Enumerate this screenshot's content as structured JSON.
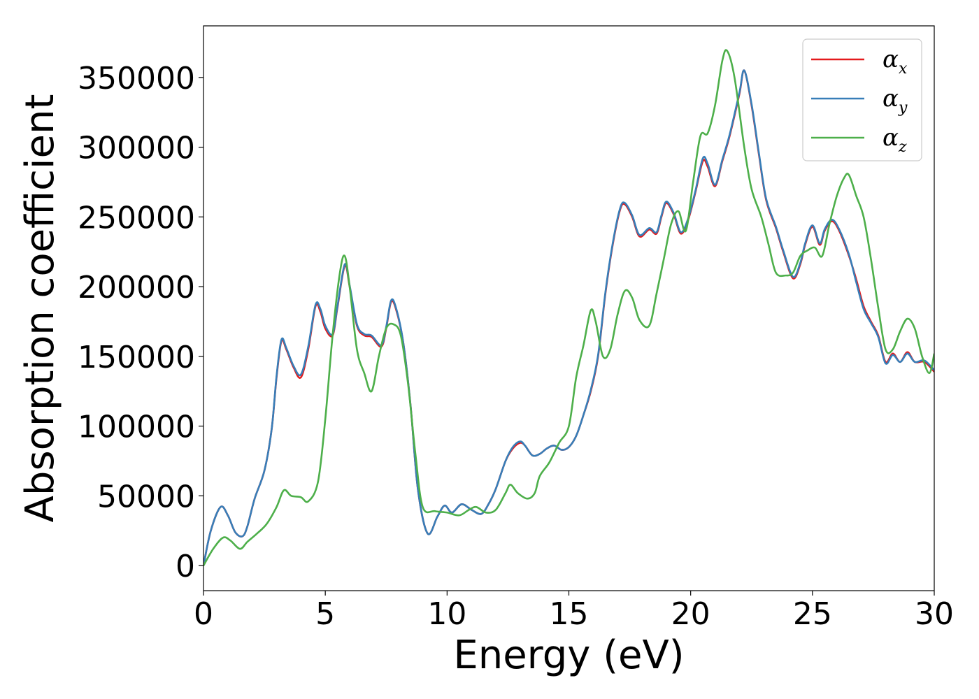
{
  "chart_data": {
    "type": "line",
    "xlabel": "Energy (eV)",
    "ylabel": "Absorption coefficient",
    "xlim": [
      0,
      30
    ],
    "ylim": [
      -18000,
      387000
    ],
    "x_ticks": [
      0,
      5,
      10,
      15,
      20,
      25,
      30
    ],
    "x_tick_labels": [
      "0",
      "5",
      "10",
      "15",
      "20",
      "25",
      "30"
    ],
    "y_ticks": [
      0,
      50000,
      100000,
      150000,
      200000,
      250000,
      300000,
      350000
    ],
    "y_tick_labels": [
      "0",
      "50000",
      "100000",
      "150000",
      "200000",
      "250000",
      "300000",
      "350000"
    ],
    "grid": false,
    "legend_position": "top-right",
    "series": [
      {
        "name": "α_x",
        "label_base": "α",
        "label_sub": "x",
        "color": "#e41a1c",
        "points": [
          [
            0,
            0
          ],
          [
            0.3,
            25000
          ],
          [
            0.7,
            42000
          ],
          [
            1.0,
            36000
          ],
          [
            1.3,
            24000
          ],
          [
            1.6,
            21000
          ],
          [
            1.8,
            28000
          ],
          [
            2.1,
            48000
          ],
          [
            2.5,
            68000
          ],
          [
            2.8,
            98000
          ],
          [
            3.0,
            135000
          ],
          [
            3.2,
            161000
          ],
          [
            3.4,
            155000
          ],
          [
            3.7,
            142000
          ],
          [
            4.0,
            135000
          ],
          [
            4.3,
            155000
          ],
          [
            4.6,
            186000
          ],
          [
            4.8,
            182000
          ],
          [
            5.0,
            170000
          ],
          [
            5.3,
            165000
          ],
          [
            5.5,
            185000
          ],
          [
            5.8,
            215000
          ],
          [
            6.0,
            200000
          ],
          [
            6.3,
            172000
          ],
          [
            6.6,
            165000
          ],
          [
            6.9,
            164000
          ],
          [
            7.3,
            157000
          ],
          [
            7.5,
            170000
          ],
          [
            7.7,
            189000
          ],
          [
            7.9,
            184000
          ],
          [
            8.2,
            160000
          ],
          [
            8.5,
            115000
          ],
          [
            8.8,
            55000
          ],
          [
            9.2,
            23000
          ],
          [
            9.6,
            35000
          ],
          [
            9.9,
            43000
          ],
          [
            10.2,
            38000
          ],
          [
            10.6,
            44000
          ],
          [
            11.0,
            40000
          ],
          [
            11.4,
            37000
          ],
          [
            11.7,
            44000
          ],
          [
            12.0,
            55000
          ],
          [
            12.4,
            75000
          ],
          [
            12.7,
            84000
          ],
          [
            13.0,
            88000
          ],
          [
            13.2,
            86000
          ],
          [
            13.5,
            79000
          ],
          [
            13.8,
            80000
          ],
          [
            14.1,
            84000
          ],
          [
            14.4,
            86000
          ],
          [
            14.7,
            83000
          ],
          [
            15.0,
            85000
          ],
          [
            15.3,
            93000
          ],
          [
            15.6,
            108000
          ],
          [
            15.9,
            125000
          ],
          [
            16.2,
            150000
          ],
          [
            16.5,
            195000
          ],
          [
            16.8,
            230000
          ],
          [
            17.1,
            255000
          ],
          [
            17.3,
            259000
          ],
          [
            17.6,
            250000
          ],
          [
            17.9,
            236000
          ],
          [
            18.3,
            241000
          ],
          [
            18.6,
            238000
          ],
          [
            18.8,
            250000
          ],
          [
            19.0,
            260000
          ],
          [
            19.3,
            252000
          ],
          [
            19.6,
            238000
          ],
          [
            19.9,
            248000
          ],
          [
            20.2,
            268000
          ],
          [
            20.5,
            290000
          ],
          [
            20.7,
            286000
          ],
          [
            21.0,
            272000
          ],
          [
            21.3,
            290000
          ],
          [
            21.6,
            308000
          ],
          [
            22.0,
            338000
          ],
          [
            22.2,
            355000
          ],
          [
            22.5,
            330000
          ],
          [
            22.8,
            295000
          ],
          [
            23.1,
            262000
          ],
          [
            23.5,
            242000
          ],
          [
            23.8,
            225000
          ],
          [
            24.2,
            206000
          ],
          [
            24.5,
            216000
          ],
          [
            24.7,
            230000
          ],
          [
            25.0,
            243000
          ],
          [
            25.3,
            230000
          ],
          [
            25.5,
            240000
          ],
          [
            25.8,
            247000
          ],
          [
            26.1,
            240000
          ],
          [
            26.5,
            222000
          ],
          [
            26.8,
            205000
          ],
          [
            27.1,
            186000
          ],
          [
            27.4,
            175000
          ],
          [
            27.7,
            165000
          ],
          [
            28.0,
            146000
          ],
          [
            28.3,
            152000
          ],
          [
            28.6,
            146000
          ],
          [
            28.9,
            153000
          ],
          [
            29.2,
            146000
          ],
          [
            29.6,
            146000
          ],
          [
            30.0,
            139000
          ]
        ]
      },
      {
        "name": "α_y",
        "label_base": "α",
        "label_sub": "y",
        "color": "#377eb8",
        "points": [
          [
            0,
            0
          ],
          [
            0.3,
            25000
          ],
          [
            0.7,
            42000
          ],
          [
            1.0,
            36000
          ],
          [
            1.3,
            24000
          ],
          [
            1.6,
            21000
          ],
          [
            1.8,
            28000
          ],
          [
            2.1,
            48000
          ],
          [
            2.5,
            68000
          ],
          [
            2.8,
            98000
          ],
          [
            3.0,
            136000
          ],
          [
            3.2,
            162000
          ],
          [
            3.4,
            156000
          ],
          [
            3.7,
            143000
          ],
          [
            4.0,
            137000
          ],
          [
            4.3,
            157000
          ],
          [
            4.6,
            187000
          ],
          [
            4.8,
            184000
          ],
          [
            5.0,
            172000
          ],
          [
            5.3,
            166000
          ],
          [
            5.5,
            186000
          ],
          [
            5.8,
            216000
          ],
          [
            6.0,
            201000
          ],
          [
            6.3,
            173000
          ],
          [
            6.6,
            166000
          ],
          [
            6.9,
            165000
          ],
          [
            7.3,
            158000
          ],
          [
            7.5,
            171000
          ],
          [
            7.7,
            190000
          ],
          [
            7.9,
            185000
          ],
          [
            8.2,
            160000
          ],
          [
            8.5,
            115000
          ],
          [
            8.8,
            55000
          ],
          [
            9.2,
            23000
          ],
          [
            9.6,
            35000
          ],
          [
            9.9,
            43000
          ],
          [
            10.2,
            38000
          ],
          [
            10.6,
            44000
          ],
          [
            11.0,
            40000
          ],
          [
            11.4,
            37000
          ],
          [
            11.7,
            44000
          ],
          [
            12.0,
            55000
          ],
          [
            12.4,
            75000
          ],
          [
            12.7,
            85000
          ],
          [
            13.0,
            89000
          ],
          [
            13.2,
            86000
          ],
          [
            13.5,
            79000
          ],
          [
            13.8,
            80000
          ],
          [
            14.1,
            84000
          ],
          [
            14.4,
            86000
          ],
          [
            14.7,
            83000
          ],
          [
            15.0,
            85000
          ],
          [
            15.3,
            93000
          ],
          [
            15.6,
            108000
          ],
          [
            15.9,
            126000
          ],
          [
            16.2,
            151000
          ],
          [
            16.5,
            196000
          ],
          [
            16.8,
            231000
          ],
          [
            17.1,
            256000
          ],
          [
            17.3,
            260000
          ],
          [
            17.6,
            251000
          ],
          [
            17.9,
            237000
          ],
          [
            18.3,
            242000
          ],
          [
            18.6,
            239000
          ],
          [
            18.8,
            251000
          ],
          [
            19.0,
            261000
          ],
          [
            19.3,
            253000
          ],
          [
            19.6,
            239000
          ],
          [
            19.9,
            249000
          ],
          [
            20.2,
            269000
          ],
          [
            20.5,
            292000
          ],
          [
            20.7,
            288000
          ],
          [
            21.0,
            273000
          ],
          [
            21.3,
            291000
          ],
          [
            21.6,
            309000
          ],
          [
            22.0,
            339000
          ],
          [
            22.2,
            355000
          ],
          [
            22.5,
            331000
          ],
          [
            22.8,
            296000
          ],
          [
            23.1,
            263000
          ],
          [
            23.5,
            243000
          ],
          [
            23.8,
            226000
          ],
          [
            24.2,
            207000
          ],
          [
            24.5,
            217000
          ],
          [
            24.7,
            231000
          ],
          [
            25.0,
            244000
          ],
          [
            25.3,
            231000
          ],
          [
            25.5,
            241000
          ],
          [
            25.8,
            248000
          ],
          [
            26.1,
            241000
          ],
          [
            26.5,
            223000
          ],
          [
            26.8,
            203000
          ],
          [
            27.1,
            184000
          ],
          [
            27.4,
            174000
          ],
          [
            27.7,
            164000
          ],
          [
            28.0,
            145000
          ],
          [
            28.3,
            151000
          ],
          [
            28.6,
            146000
          ],
          [
            28.9,
            152000
          ],
          [
            29.2,
            146000
          ],
          [
            29.6,
            147000
          ],
          [
            30.0,
            140000
          ]
        ]
      },
      {
        "name": "α_z",
        "label_base": "α",
        "label_sub": "z",
        "color": "#4daf4a",
        "points": [
          [
            0,
            0
          ],
          [
            0.4,
            12000
          ],
          [
            0.8,
            20000
          ],
          [
            1.1,
            18000
          ],
          [
            1.5,
            12000
          ],
          [
            1.8,
            17000
          ],
          [
            2.2,
            23000
          ],
          [
            2.6,
            30000
          ],
          [
            3.0,
            42000
          ],
          [
            3.3,
            54000
          ],
          [
            3.6,
            50000
          ],
          [
            4.0,
            49000
          ],
          [
            4.3,
            46000
          ],
          [
            4.7,
            60000
          ],
          [
            5.0,
            105000
          ],
          [
            5.3,
            165000
          ],
          [
            5.6,
            210000
          ],
          [
            5.8,
            222000
          ],
          [
            6.0,
            200000
          ],
          [
            6.3,
            155000
          ],
          [
            6.6,
            138000
          ],
          [
            6.9,
            125000
          ],
          [
            7.2,
            150000
          ],
          [
            7.5,
            170000
          ],
          [
            7.8,
            173000
          ],
          [
            8.1,
            165000
          ],
          [
            8.4,
            130000
          ],
          [
            8.7,
            80000
          ],
          [
            9.0,
            42000
          ],
          [
            9.5,
            39000
          ],
          [
            10.0,
            38000
          ],
          [
            10.5,
            36000
          ],
          [
            10.9,
            40000
          ],
          [
            11.2,
            42000
          ],
          [
            11.6,
            38000
          ],
          [
            12.0,
            40000
          ],
          [
            12.4,
            52000
          ],
          [
            12.6,
            58000
          ],
          [
            12.9,
            52000
          ],
          [
            13.3,
            48000
          ],
          [
            13.6,
            52000
          ],
          [
            13.8,
            64000
          ],
          [
            14.2,
            74000
          ],
          [
            14.6,
            88000
          ],
          [
            15.0,
            100000
          ],
          [
            15.3,
            135000
          ],
          [
            15.6,
            158000
          ],
          [
            15.9,
            183000
          ],
          [
            16.1,
            175000
          ],
          [
            16.4,
            150000
          ],
          [
            16.7,
            155000
          ],
          [
            17.0,
            180000
          ],
          [
            17.3,
            197000
          ],
          [
            17.6,
            192000
          ],
          [
            17.9,
            176000
          ],
          [
            18.3,
            172000
          ],
          [
            18.6,
            195000
          ],
          [
            18.9,
            220000
          ],
          [
            19.2,
            245000
          ],
          [
            19.5,
            254000
          ],
          [
            19.8,
            240000
          ],
          [
            20.1,
            275000
          ],
          [
            20.4,
            308000
          ],
          [
            20.7,
            310000
          ],
          [
            21.0,
            330000
          ],
          [
            21.3,
            362000
          ],
          [
            21.5,
            369000
          ],
          [
            21.8,
            350000
          ],
          [
            22.2,
            300000
          ],
          [
            22.5,
            270000
          ],
          [
            22.9,
            250000
          ],
          [
            23.2,
            230000
          ],
          [
            23.5,
            210000
          ],
          [
            23.9,
            208000
          ],
          [
            24.2,
            210000
          ],
          [
            24.5,
            222000
          ],
          [
            24.8,
            226000
          ],
          [
            25.1,
            228000
          ],
          [
            25.4,
            222000
          ],
          [
            25.7,
            245000
          ],
          [
            26.0,
            265000
          ],
          [
            26.3,
            278000
          ],
          [
            26.5,
            280000
          ],
          [
            26.8,
            265000
          ],
          [
            27.1,
            250000
          ],
          [
            27.4,
            220000
          ],
          [
            27.7,
            185000
          ],
          [
            28.0,
            155000
          ],
          [
            28.3,
            155000
          ],
          [
            28.6,
            168000
          ],
          [
            28.9,
            177000
          ],
          [
            29.2,
            170000
          ],
          [
            29.5,
            150000
          ],
          [
            29.8,
            138000
          ],
          [
            30.0,
            152000
          ]
        ]
      }
    ]
  }
}
